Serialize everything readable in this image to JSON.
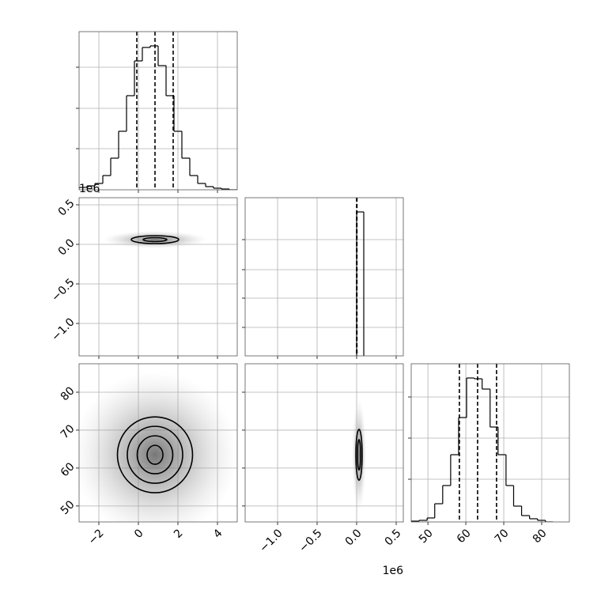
{
  "chart_data": [
    {
      "type": "histogram",
      "bins": [
        -3,
        -2.6,
        -2.2,
        -1.8,
        -1.4,
        -1,
        -0.6,
        -0.2,
        0.2,
        0.6,
        1,
        1.4,
        1.8,
        2.2,
        2.6,
        3,
        3.4,
        3.8,
        4.2,
        4.6,
        5
      ],
      "counts": [
        3,
        5,
        8,
        18,
        40,
        74,
        119,
        163,
        180,
        182,
        157,
        119,
        74,
        40,
        18,
        8,
        4,
        2,
        1,
        0
      ],
      "quantiles": [
        -0.08,
        0.84,
        1.76
      ],
      "xlim": [
        -3,
        5
      ],
      "xticks": [
        -2,
        0,
        2,
        4
      ],
      "ylim": [
        0,
        200
      ],
      "yticks": [
        52,
        103,
        155
      ],
      "grid": true,
      "color": "#000000"
    },
    {
      "type": "contour",
      "contours": [
        {
          "cx": 0.84,
          "cy": 0.06,
          "rx": 1.2,
          "ry": 0.05
        },
        {
          "cx": 0.84,
          "cy": 0.06,
          "rx": 0.6,
          "ry": 0.025
        }
      ],
      "xlim": [
        -3,
        5
      ],
      "xticks": [
        -2,
        0,
        2,
        4
      ],
      "ylim": [
        -1.41,
        0.59
      ],
      "yticks": [
        0.5,
        {
          "value": 0,
          "label": "0.0"
        },
        {
          "value": -0.5,
          "label": "−0.5"
        },
        {
          "value": -1,
          "label": "−1.0"
        }
      ],
      "y_offset_label": "1e6",
      "show_yticklabels": true,
      "grid": true,
      "color": "#000000"
    },
    {
      "type": "histogram",
      "bins": [
        0,
        0.09
      ],
      "counts": [
        182
      ],
      "quantiles": [
        0,
        0.002,
        0.004
      ],
      "xlim": [
        -1.41,
        0.59
      ],
      "xticks": [
        -1,
        -0.5,
        0,
        0.5
      ],
      "ylim": [
        0,
        200
      ],
      "yticks": [
        36,
        73,
        109,
        147
      ],
      "grid": true,
      "color": "#000000"
    },
    {
      "type": "contour",
      "contours": [
        {
          "cx": 0.84,
          "cy": 63.5,
          "rx": 1.9,
          "ry": 10
        },
        {
          "cx": 0.84,
          "cy": 63.5,
          "rx": 1.4,
          "ry": 7.5
        },
        {
          "cx": 0.84,
          "cy": 63.5,
          "rx": 0.9,
          "ry": 5
        },
        {
          "cx": 0.84,
          "cy": 63.5,
          "rx": 0.4,
          "ry": 2.5
        }
      ],
      "xlim": [
        -3,
        5
      ],
      "xticks": [
        {
          "value": -2,
          "label": "−2"
        },
        0,
        2,
        4
      ],
      "ylim": [
        45.8,
        87.5
      ],
      "yticks": [
        50,
        60,
        70,
        80
      ],
      "show_xticklabels": true,
      "show_yticklabels": true,
      "grid": true,
      "color": "#000000"
    },
    {
      "type": "contour",
      "contours": [
        {
          "cx": 0.03,
          "cy": 63.5,
          "rx": 0.04,
          "ry": 6.7
        },
        {
          "cx": 0.03,
          "cy": 63.5,
          "rx": 0.02,
          "ry": 4
        }
      ],
      "xlim": [
        -1.41,
        0.59
      ],
      "xticks": [
        {
          "value": -1,
          "label": "−1.0"
        },
        {
          "value": -0.5,
          "label": "−0.5"
        },
        {
          "value": 0,
          "label": "0.0"
        },
        0.5
      ],
      "ylim": [
        45.8,
        87.5
      ],
      "yticks": [
        50,
        60,
        70,
        80
      ],
      "x_offset_label": "1e6",
      "show_xticklabels": true,
      "grid": true,
      "color": "#000000"
    },
    {
      "type": "histogram",
      "bins": [
        45.6,
        47.7,
        49.8,
        51.8,
        53.9,
        56.0,
        58.1,
        60.2,
        62.2,
        64.3,
        66.4,
        68.5,
        70.6,
        72.6,
        74.7,
        76.8,
        78.9,
        81.0,
        83.0
      ],
      "counts": [
        1,
        2,
        5,
        23,
        46,
        85,
        132,
        182,
        181,
        168,
        120,
        85,
        46,
        20,
        8,
        4,
        2,
        0
      ],
      "quantiles": [
        58.3,
        63.1,
        68.1
      ],
      "xlim": [
        45.6,
        87.3
      ],
      "xticks": [
        50,
        60,
        70,
        80
      ],
      "ylim": [
        0,
        200
      ],
      "yticks": [
        54,
        106,
        158
      ],
      "show_xticklabels": true,
      "grid": true,
      "color": "#000000"
    }
  ]
}
